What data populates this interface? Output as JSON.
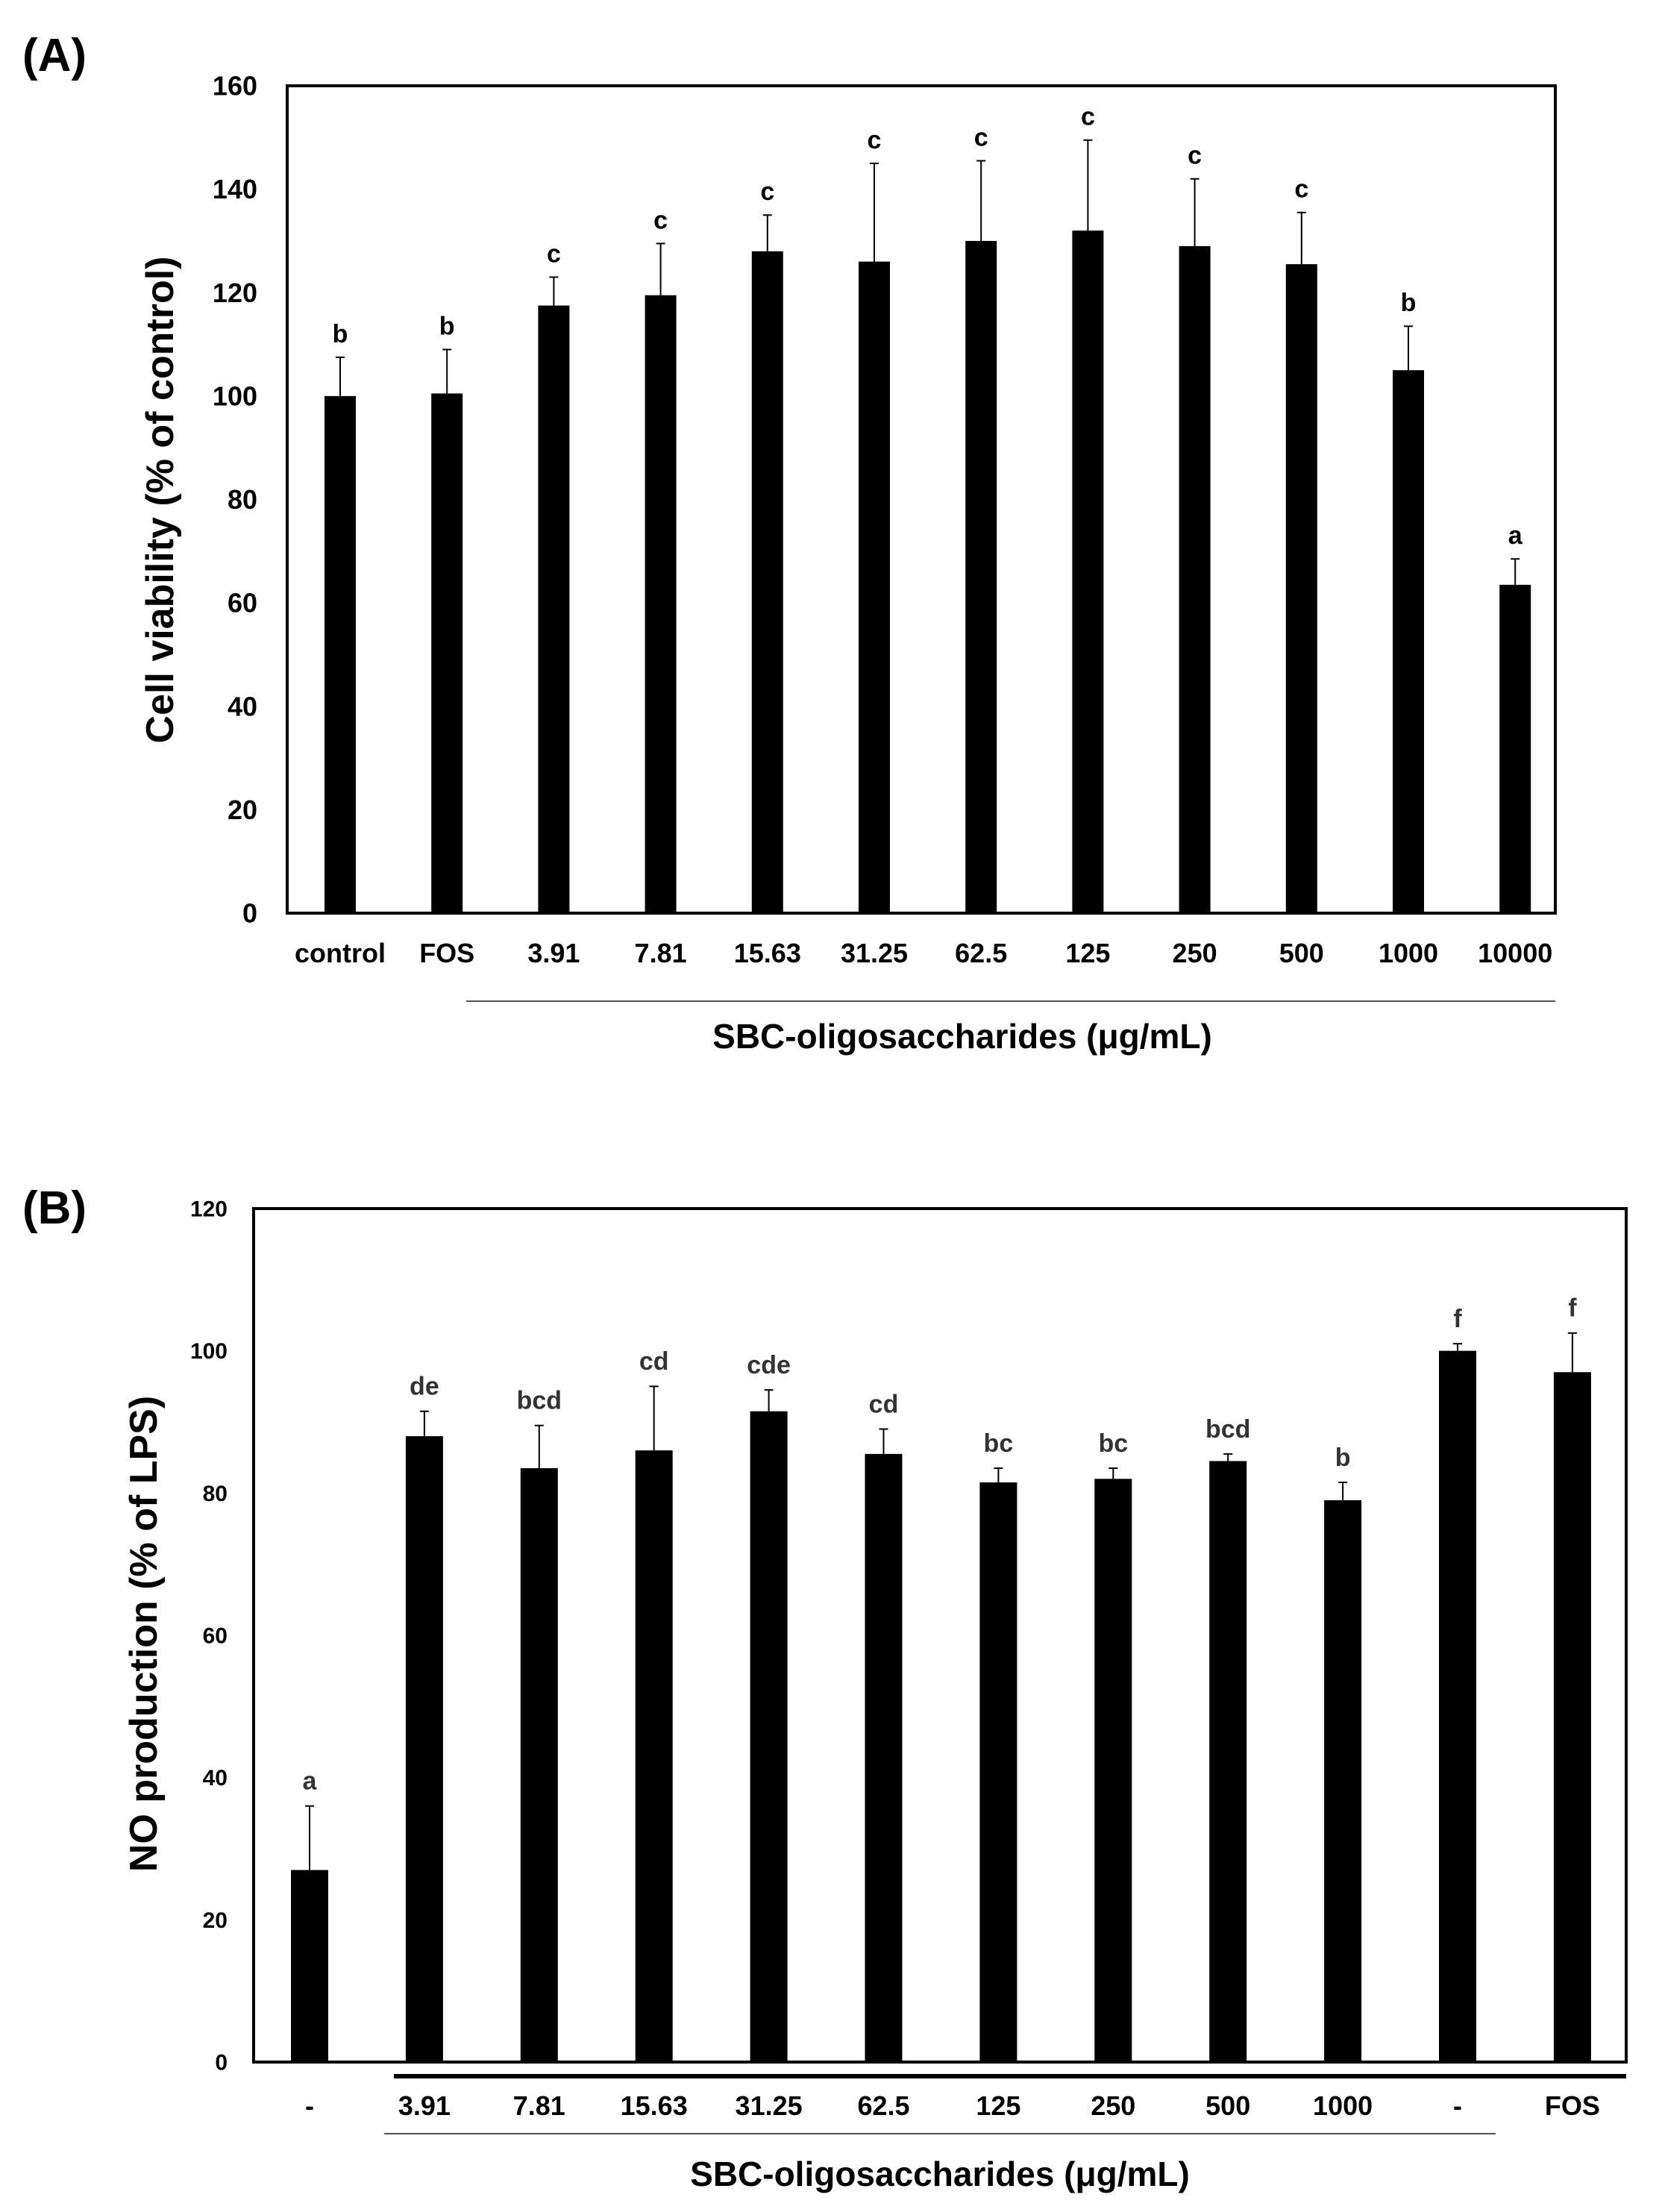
{
  "chart_data": [
    {
      "panel_label": "(A)",
      "type": "bar",
      "categories": [
        "control",
        "FOS",
        "3.91",
        "7.81",
        "15.63",
        "31.25",
        "62.5",
        "125",
        "250",
        "500",
        "1000",
        "10000"
      ],
      "values": [
        100,
        100.5,
        117.5,
        119.5,
        128,
        126,
        130,
        132,
        129,
        125.5,
        105,
        63.5
      ],
      "errors": [
        7.5,
        8.5,
        5.5,
        10,
        7,
        19,
        15.5,
        17.5,
        13,
        10,
        8.5,
        5
      ],
      "letters": [
        "b",
        "b",
        "c",
        "c",
        "c",
        "c",
        "c",
        "c",
        "c",
        "c",
        "b",
        "a"
      ],
      "ylabel": "Cell viability (% of control)",
      "xlabel": "SBC-oligosaccharides (μg/mL)",
      "ylim": [
        0,
        160
      ],
      "yticks": [
        0,
        20,
        40,
        60,
        80,
        100,
        120,
        140,
        160
      ],
      "title": ""
    },
    {
      "panel_label": "(B)",
      "type": "bar",
      "categories": [
        "-",
        "3.91",
        "7.81",
        "15.63",
        "31.25",
        "62.5",
        "125",
        "250",
        "500",
        "1000",
        "-",
        "FOS"
      ],
      "values": [
        27,
        88,
        83.5,
        86,
        91.5,
        85.5,
        81.5,
        82,
        84.5,
        79,
        100,
        97
      ],
      "errors": [
        9,
        3.5,
        6,
        9,
        3,
        3.5,
        2,
        1.5,
        1,
        2.5,
        1,
        5.5
      ],
      "letters": [
        "a",
        "de",
        "bcd",
        "cd",
        "cde",
        "cd",
        "bc",
        "bc",
        "bcd",
        "b",
        "f",
        "f"
      ],
      "ylabel": "NO production (% of LPS)",
      "xlabel": "SBC-oligosaccharides (μg/mL)",
      "ylim": [
        0,
        120
      ],
      "yticks": [
        0,
        20,
        40,
        60,
        80,
        100,
        120
      ],
      "title": ""
    }
  ]
}
